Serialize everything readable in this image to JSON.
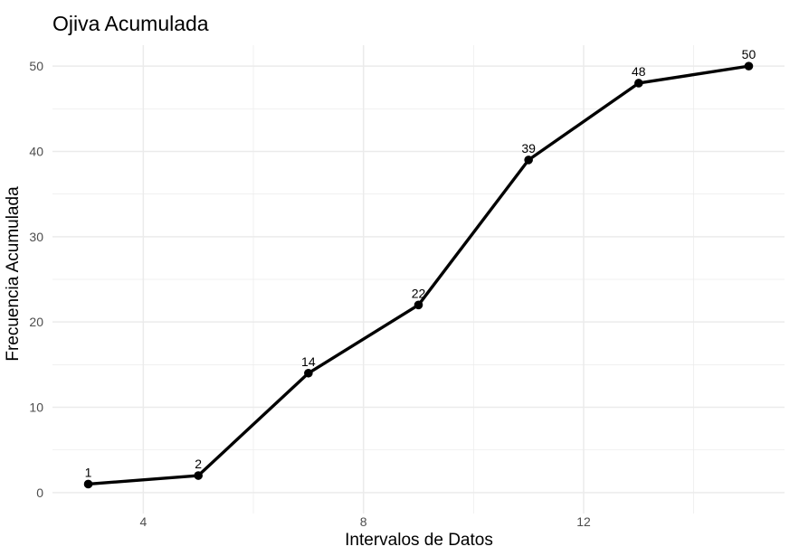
{
  "chart_data": {
    "type": "line",
    "title": "Ojiva Acumulada",
    "xlabel": "Intervalos de Datos",
    "ylabel": "Frecuencia Acumulada",
    "x": [
      3,
      5,
      7,
      9,
      11,
      13,
      15
    ],
    "series": [
      {
        "values": [
          1,
          2,
          14,
          22,
          39,
          48,
          50
        ]
      }
    ],
    "data_labels": [
      "1",
      "2",
      "14",
      "22",
      "39",
      "48",
      "50"
    ],
    "xlim": [
      2.35,
      15.65
    ],
    "ylim": [
      -2.45,
      52.45
    ],
    "x_ticks": [
      4,
      8,
      12
    ],
    "x_tick_labels": [
      "4",
      "8",
      "12"
    ],
    "y_ticks": [
      0,
      10,
      20,
      30,
      40,
      50
    ],
    "y_tick_labels": [
      "0",
      "10",
      "20",
      "30",
      "40",
      "50"
    ],
    "grid": true,
    "legend": "none",
    "colors": {
      "line": "#000000",
      "grid": "#ebebeb",
      "tick_text": "#4d4d4d",
      "background": "#ffffff"
    }
  }
}
